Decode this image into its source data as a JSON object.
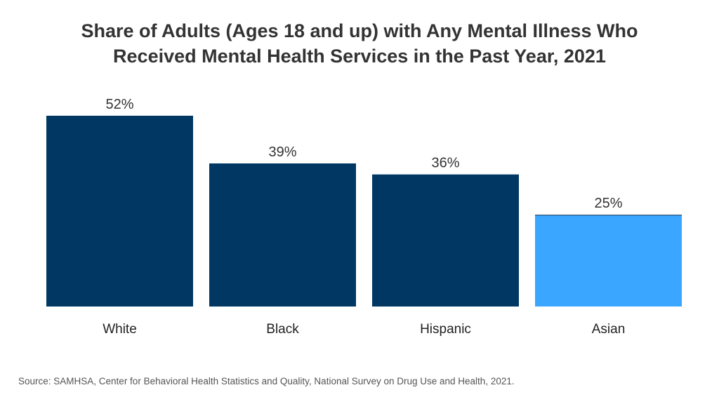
{
  "chart_data": {
    "type": "bar",
    "title_line1": "Share of Adults (Ages 18 and up) with Any Mental Illness Who",
    "title_line2": "Received Mental Health Services in the Past Year, 2021",
    "categories": [
      "White",
      "Black",
      "Hispanic",
      "Asian"
    ],
    "values": [
      52,
      39,
      36,
      25
    ],
    "data_labels": [
      "52%",
      "39%",
      "36%",
      "25%"
    ],
    "colors": [
      "#003863",
      "#003863",
      "#003863",
      "#3ba6ff"
    ],
    "ylim": [
      0,
      52
    ],
    "grid": false,
    "xlabel": "",
    "ylabel": ""
  },
  "source": "Source: SAMHSA, Center for Behavioral Health Statistics and Quality, National Survey on Drug Use and Health, 2021."
}
